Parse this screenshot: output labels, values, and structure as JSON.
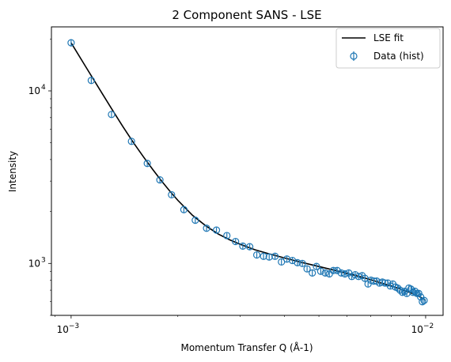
{
  "chart_data": {
    "type": "scatter",
    "title": "2 Component SANS - LSE",
    "xlabel": "Momentum Transfer Q (Å-1)",
    "ylabel": "Intensity",
    "xscale": "log",
    "yscale": "log",
    "xlim": [
      0.00088,
      0.0112
    ],
    "ylim": [
      500,
      23500
    ],
    "x_ticks": [
      {
        "value": 0.001,
        "base": "10",
        "exp": "−3"
      },
      {
        "value": 0.01,
        "base": "10",
        "exp": "−2"
      }
    ],
    "y_ticks": [
      {
        "value": 1000,
        "base": "10",
        "exp": "3"
      },
      {
        "value": 10000,
        "base": "10",
        "exp": "4"
      }
    ],
    "grid": false,
    "legend_position": "top-right",
    "legend": [
      {
        "label": "LSE fit",
        "kind": "line"
      },
      {
        "label": "Data (hist)",
        "kind": "errorbar-marker"
      }
    ],
    "colors": {
      "fit": "#000000",
      "data": "#1f77b4"
    },
    "fit": {
      "name": "LSE fit",
      "x": [
        0.001,
        0.0011,
        0.0012,
        0.0013,
        0.0014,
        0.0015,
        0.0016,
        0.0017,
        0.0018,
        0.0019,
        0.002,
        0.0022,
        0.0024,
        0.0026,
        0.0028,
        0.003,
        0.0033,
        0.0036,
        0.004,
        0.0045,
        0.005,
        0.0055,
        0.006,
        0.0065,
        0.007,
        0.0075,
        0.008,
        0.0085,
        0.009,
        0.0095,
        0.01
      ],
      "y": [
        19000,
        13800,
        10300,
        7900,
        6200,
        5000,
        4150,
        3500,
        3000,
        2620,
        2320,
        1900,
        1650,
        1480,
        1370,
        1290,
        1200,
        1140,
        1075,
        1010,
        960,
        915,
        875,
        840,
        805,
        770,
        740,
        710,
        680,
        650,
        612
      ]
    },
    "series": [
      {
        "name": "Data (hist)",
        "x": [
          0.001,
          0.00114,
          0.0013,
          0.00148,
          0.00164,
          0.00178,
          0.00192,
          0.00208,
          0.00224,
          0.00241,
          0.00257,
          0.00275,
          0.00291,
          0.00305,
          0.00319,
          0.00334,
          0.00349,
          0.00362,
          0.00376,
          0.00392,
          0.00406,
          0.00421,
          0.00435,
          0.00449,
          0.00463,
          0.00479,
          0.00492,
          0.00506,
          0.00521,
          0.00535,
          0.00549,
          0.00563,
          0.00578,
          0.00592,
          0.00607,
          0.00619,
          0.00633,
          0.00647,
          0.00662,
          0.00674,
          0.00688,
          0.00701,
          0.00714,
          0.00728,
          0.00741,
          0.00755,
          0.00768,
          0.00782,
          0.00795,
          0.00808,
          0.00822,
          0.00834,
          0.00847,
          0.0086,
          0.00873,
          0.00885,
          0.00897,
          0.00909,
          0.00921,
          0.00933,
          0.00945,
          0.00956,
          0.00968,
          0.00979,
          0.0099
        ],
        "y": [
          19000,
          11500,
          7300,
          5100,
          3800,
          3050,
          2500,
          2050,
          1780,
          1600,
          1560,
          1450,
          1340,
          1260,
          1250,
          1120,
          1100,
          1090,
          1100,
          1020,
          1060,
          1040,
          1010,
          1000,
          930,
          880,
          960,
          900,
          880,
          870,
          910,
          910,
          880,
          870,
          880,
          840,
          860,
          840,
          850,
          820,
          760,
          800,
          790,
          790,
          770,
          780,
          770,
          770,
          740,
          760,
          730,
          720,
          700,
          680,
          690,
          670,
          720,
          710,
          680,
          690,
          670,
          670,
          640,
          600,
          610
        ],
        "yerr": [
          900,
          500,
          320,
          200,
          150,
          110,
          90,
          75,
          65,
          58,
          55,
          52,
          48,
          46,
          45,
          42,
          41,
          40,
          41,
          39,
          40,
          39,
          38,
          38,
          36,
          35,
          37,
          35,
          35,
          34,
          35,
          35,
          34,
          34,
          34,
          33,
          34,
          33,
          33,
          32,
          31,
          32,
          32,
          32,
          31,
          31,
          31,
          31,
          30,
          31,
          30,
          30,
          29,
          29,
          29,
          28,
          30,
          29,
          28,
          29,
          28,
          28,
          27,
          26,
          26
        ]
      }
    ]
  }
}
